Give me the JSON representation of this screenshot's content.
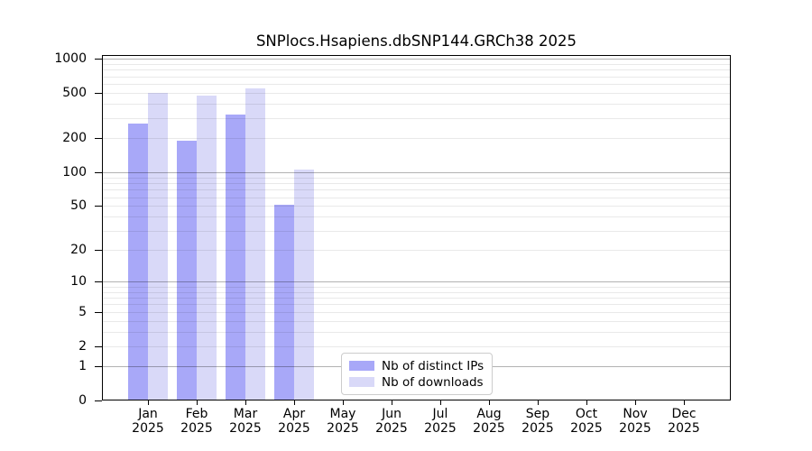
{
  "figure": {
    "title": "SNPlocs.Hsapiens.dbSNP144.GRCh38 2025"
  },
  "legend": {
    "items": [
      {
        "label": "Nb of distinct IPs",
        "color": "#a8a8f8"
      },
      {
        "label": "Nb of downloads",
        "color": "#d9d9f8"
      }
    ]
  },
  "chart_data": {
    "type": "bar",
    "title": "SNPlocs.Hsapiens.dbSNP144.GRCh38 2025",
    "categories": [
      "Jan",
      "Feb",
      "Mar",
      "Apr",
      "May",
      "Jun",
      "Jul",
      "Aug",
      "Sep",
      "Oct",
      "Nov",
      "Dec"
    ],
    "category_year": "2025",
    "series": [
      {
        "name": "Nb of distinct IPs",
        "color": "#a8a8f8",
        "values": [
          270,
          190,
          320,
          51,
          0,
          0,
          0,
          0,
          0,
          0,
          0,
          0
        ]
      },
      {
        "name": "Nb of downloads",
        "color": "#d9d9f8",
        "values": [
          500,
          475,
          550,
          105,
          0,
          0,
          0,
          0,
          0,
          0,
          0,
          0
        ]
      }
    ],
    "xlabel": "",
    "ylabel": "",
    "yscale": "log1p",
    "yticks": [
      0,
      1,
      2,
      5,
      10,
      20,
      50,
      100,
      200,
      500,
      1000
    ],
    "ylim": [
      0,
      1075
    ],
    "grid": "horizontal log minor+major, drawn over bars",
    "legend_position": "inside bottom-center"
  }
}
